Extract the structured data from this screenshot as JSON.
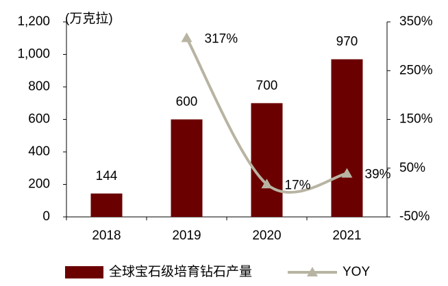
{
  "chart_data": {
    "type": "bar",
    "unit_label": "(万克拉)",
    "categories": [
      "2018",
      "2019",
      "2020",
      "2021"
    ],
    "series": [
      {
        "name": "全球宝石级培育钻石产量",
        "type": "bar",
        "color": "#6b0000",
        "values": [
          144,
          600,
          700,
          970
        ]
      },
      {
        "name": "YOY",
        "type": "line",
        "axis": "y2",
        "color": "#b8b4a2",
        "values": [
          null,
          317,
          17,
          39
        ],
        "value_labels": [
          null,
          "317%",
          "17%",
          "39%"
        ]
      }
    ],
    "ylim": [
      0,
      1200
    ],
    "yticks": [
      0,
      200,
      400,
      600,
      800,
      {
        "value": 1000,
        "label": "1,000"
      },
      {
        "value": 1200,
        "label": "1,200"
      }
    ],
    "y2lim": [
      -50,
      350
    ],
    "y2ticks": [
      {
        "value": -50,
        "label": "-50%"
      },
      {
        "value": 50,
        "label": "50%"
      },
      {
        "value": 150,
        "label": "150%"
      },
      {
        "value": 250,
        "label": "250%"
      },
      {
        "value": 350,
        "label": "350%"
      }
    ],
    "legend": "bottom"
  }
}
